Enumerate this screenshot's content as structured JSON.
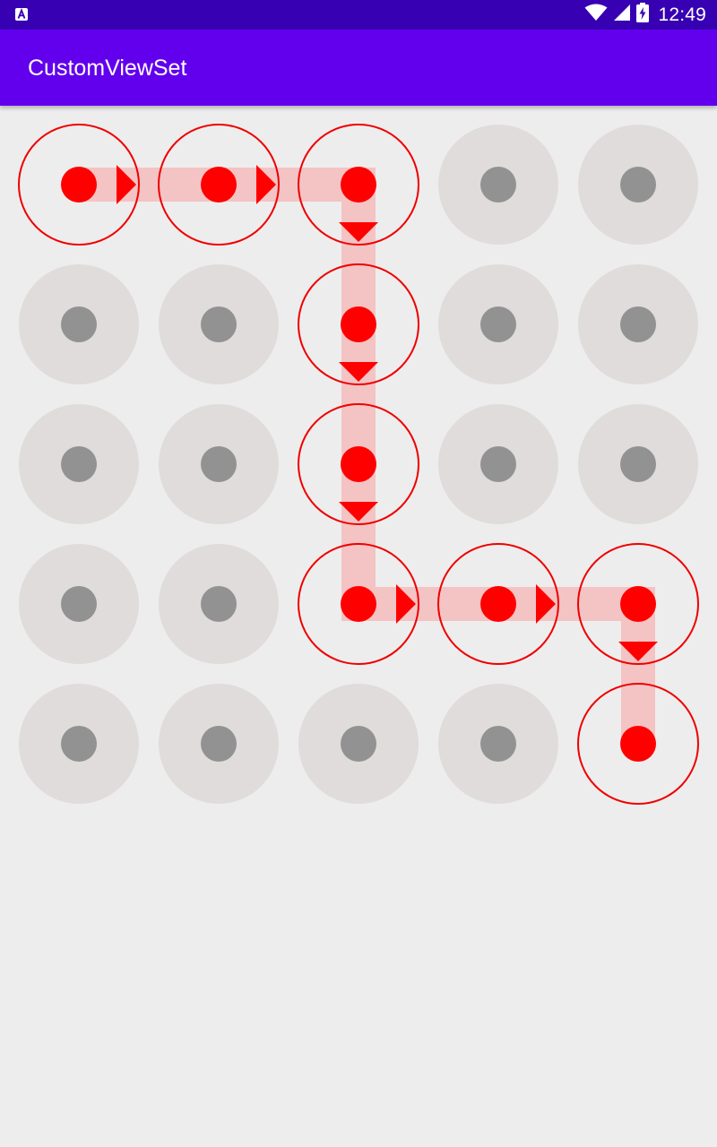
{
  "status_bar": {
    "notification_icon": "text-a-icon",
    "wifi_icon": "wifi-icon",
    "signal_icon": "signal-icon",
    "battery_icon": "battery-charging-icon",
    "time": "12:49"
  },
  "app_bar": {
    "title": "CustomViewSet"
  },
  "pattern": {
    "rows": 5,
    "columns": 5,
    "selected_path": [
      [
        0,
        0
      ],
      [
        0,
        1
      ],
      [
        0,
        2
      ],
      [
        1,
        2
      ],
      [
        2,
        2
      ],
      [
        3,
        2
      ],
      [
        3,
        3
      ],
      [
        3,
        4
      ],
      [
        4,
        4
      ]
    ],
    "colors": {
      "background": "#eeeded",
      "idle_ring": "#dfdcdb",
      "idle_dot": "#929292",
      "selected_dot": "#ff0000",
      "selected_ring": "#ee0000",
      "path_line": "#f4c3c4",
      "arrow": "#ff0000"
    }
  }
}
